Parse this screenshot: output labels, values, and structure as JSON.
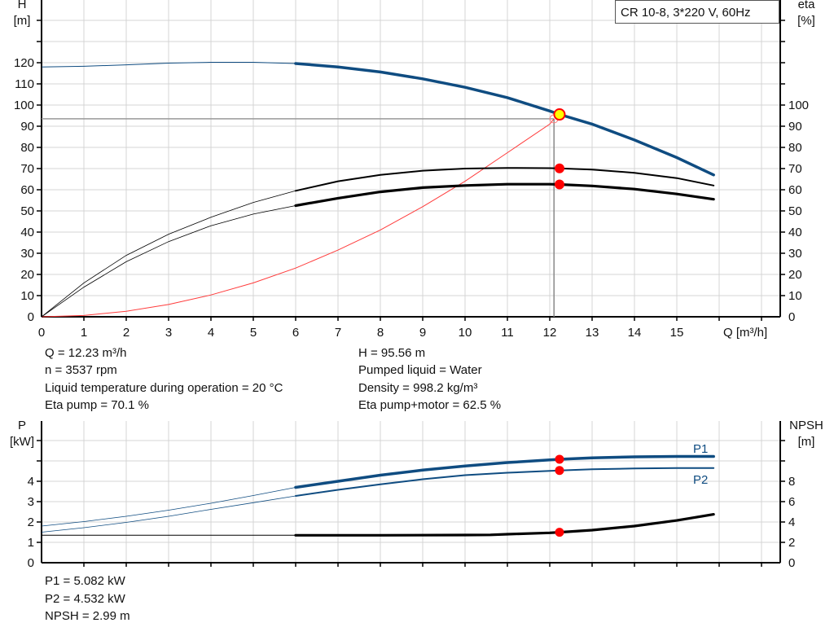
{
  "chart_data": [
    {
      "type": "line",
      "title_box": "CR 10-8, 3*220 V, 60Hz",
      "xlabel": "Q [m³/h]",
      "xlim": [
        0,
        17.4
      ],
      "xticks": [
        0,
        1,
        2,
        3,
        4,
        5,
        6,
        7,
        8,
        9,
        10,
        11,
        12,
        13,
        14,
        15,
        16,
        17
      ],
      "xtick_labels": [
        "0",
        "1",
        "2",
        "3",
        "4",
        "5",
        "6",
        "7",
        "8",
        "9",
        "10",
        "11",
        "12",
        "13",
        "14",
        "15"
      ],
      "ylabel_left": "H",
      "ylabel_left_unit": "[m]",
      "ylim_left": [
        0,
        150
      ],
      "yticks_left_labels": [
        0,
        10,
        20,
        30,
        40,
        50,
        60,
        70,
        80,
        90,
        100,
        110,
        120
      ],
      "ylabel_right": "eta",
      "ylabel_right_unit": "[%]",
      "ylim_right": [
        0,
        150
      ],
      "yticks_right_labels": [
        0,
        10,
        20,
        30,
        40,
        50,
        60,
        70,
        80,
        90,
        100
      ],
      "grid": true,
      "colors": {
        "head": "#0f4c81",
        "efficiency": "#000000",
        "system": "#ff3b3b",
        "duty_point_fill": "#ffff00",
        "marker": "#ff0000"
      },
      "series": [
        {
          "axis": "left",
          "role": "head",
          "x": [
            0,
            1,
            2,
            3,
            4,
            5,
            6,
            7,
            8,
            9,
            10,
            11,
            12,
            12.23,
            13,
            14,
            15,
            15.87
          ],
          "y": [
            118,
            118.3,
            119,
            119.8,
            120.2,
            120.2,
            119.6,
            118,
            115.6,
            112.4,
            108.4,
            103.5,
            97.2,
            95.56,
            91,
            83.5,
            75.2,
            67
          ]
        },
        {
          "axis": "right",
          "role": "eta-pump",
          "x": [
            0,
            1,
            2,
            3,
            4,
            5,
            6,
            7,
            8,
            9,
            10,
            11,
            12,
            12.23,
            13,
            14,
            15,
            15.87
          ],
          "y": [
            0,
            16,
            29,
            39,
            47,
            54,
            59.5,
            64,
            67,
            69,
            70,
            70.3,
            70.2,
            70.1,
            69.5,
            68,
            65.5,
            62
          ]
        },
        {
          "axis": "right",
          "role": "eta-pump-motor",
          "x": [
            0,
            1,
            2,
            3,
            4,
            5,
            6,
            7,
            8,
            9,
            10,
            11,
            12,
            12.23,
            13,
            14,
            15,
            15.87
          ],
          "y": [
            0,
            14,
            26,
            35.5,
            43,
            48.5,
            52.5,
            56,
            59,
            61,
            62,
            62.6,
            62.6,
            62.5,
            61.8,
            60.3,
            58,
            55.5
          ]
        },
        {
          "axis": "left",
          "role": "system",
          "x": [
            0,
            1,
            2,
            3,
            4,
            5,
            6,
            7,
            8,
            9,
            10,
            11,
            12,
            12.1
          ],
          "y": [
            0,
            0.6,
            2.6,
            5.8,
            10.3,
            16,
            23,
            31.5,
            41,
            52,
            64,
            77.5,
            91,
            93.5
          ]
        }
      ],
      "duty_point": {
        "Q": 12.23,
        "H": 95.56,
        "eta_pump": 70.1,
        "eta_total": 62.5
      },
      "crosshair": {
        "Q": 12.1,
        "H": 93.5
      }
    },
    {
      "type": "line",
      "xlim": [
        0,
        17.4
      ],
      "ylabel_left": "P",
      "ylabel_left_unit": "[kW]",
      "ylim_left": [
        0,
        7
      ],
      "yticks_left_labels": [
        0,
        1,
        2,
        3,
        4
      ],
      "ylabel_right": "NPSH",
      "ylabel_right_unit": "[m]",
      "ylim_right": [
        0,
        14
      ],
      "yticks_right_labels": [
        0,
        2,
        4,
        6,
        8
      ],
      "grid": true,
      "series": [
        {
          "name": "P1",
          "axis": "left",
          "x": [
            0,
            1,
            2,
            3,
            4,
            5,
            6,
            7,
            8,
            9,
            10,
            11,
            12,
            12.23,
            13,
            14,
            15,
            15.87
          ],
          "y": [
            1.8,
            2.02,
            2.28,
            2.58,
            2.92,
            3.3,
            3.7,
            4.0,
            4.3,
            4.55,
            4.75,
            4.92,
            5.05,
            5.082,
            5.15,
            5.2,
            5.22,
            5.22
          ]
        },
        {
          "name": "P2",
          "axis": "left",
          "x": [
            0,
            1,
            2,
            3,
            4,
            5,
            6,
            7,
            8,
            9,
            10,
            11,
            12,
            12.23,
            13,
            14,
            15,
            15.87
          ],
          "y": [
            1.5,
            1.72,
            1.98,
            2.28,
            2.62,
            2.95,
            3.28,
            3.58,
            3.85,
            4.1,
            4.3,
            4.42,
            4.51,
            4.532,
            4.59,
            4.63,
            4.65,
            4.65
          ]
        },
        {
          "axis": "right",
          "role": "npsh",
          "x": [
            0,
            6,
            8,
            10,
            10.6,
            11,
            12,
            12.23,
            13,
            14,
            15,
            15.87
          ],
          "y": [
            2.7,
            2.7,
            2.7,
            2.72,
            2.74,
            2.8,
            2.94,
            2.99,
            3.2,
            3.6,
            4.15,
            4.75
          ]
        }
      ],
      "duty_point": {
        "Q": 12.23,
        "P1": 5.082,
        "P2": 4.532,
        "NPSH": 2.99
      }
    }
  ],
  "info_top": {
    "left": [
      "Q = 12.23 m³/h",
      "n = 3537 rpm",
      "Liquid temperature during operation = 20 °C",
      "Eta pump = 70.1 %"
    ],
    "right": [
      "H = 95.56 m",
      "Pumped liquid = Water",
      "Density = 998.2 kg/m³",
      "Eta pump+motor = 62.5 %"
    ]
  },
  "info_bottom": [
    "P1 = 5.082 kW",
    "P2 = 4.532 kW",
    "NPSH = 2.99 m"
  ]
}
